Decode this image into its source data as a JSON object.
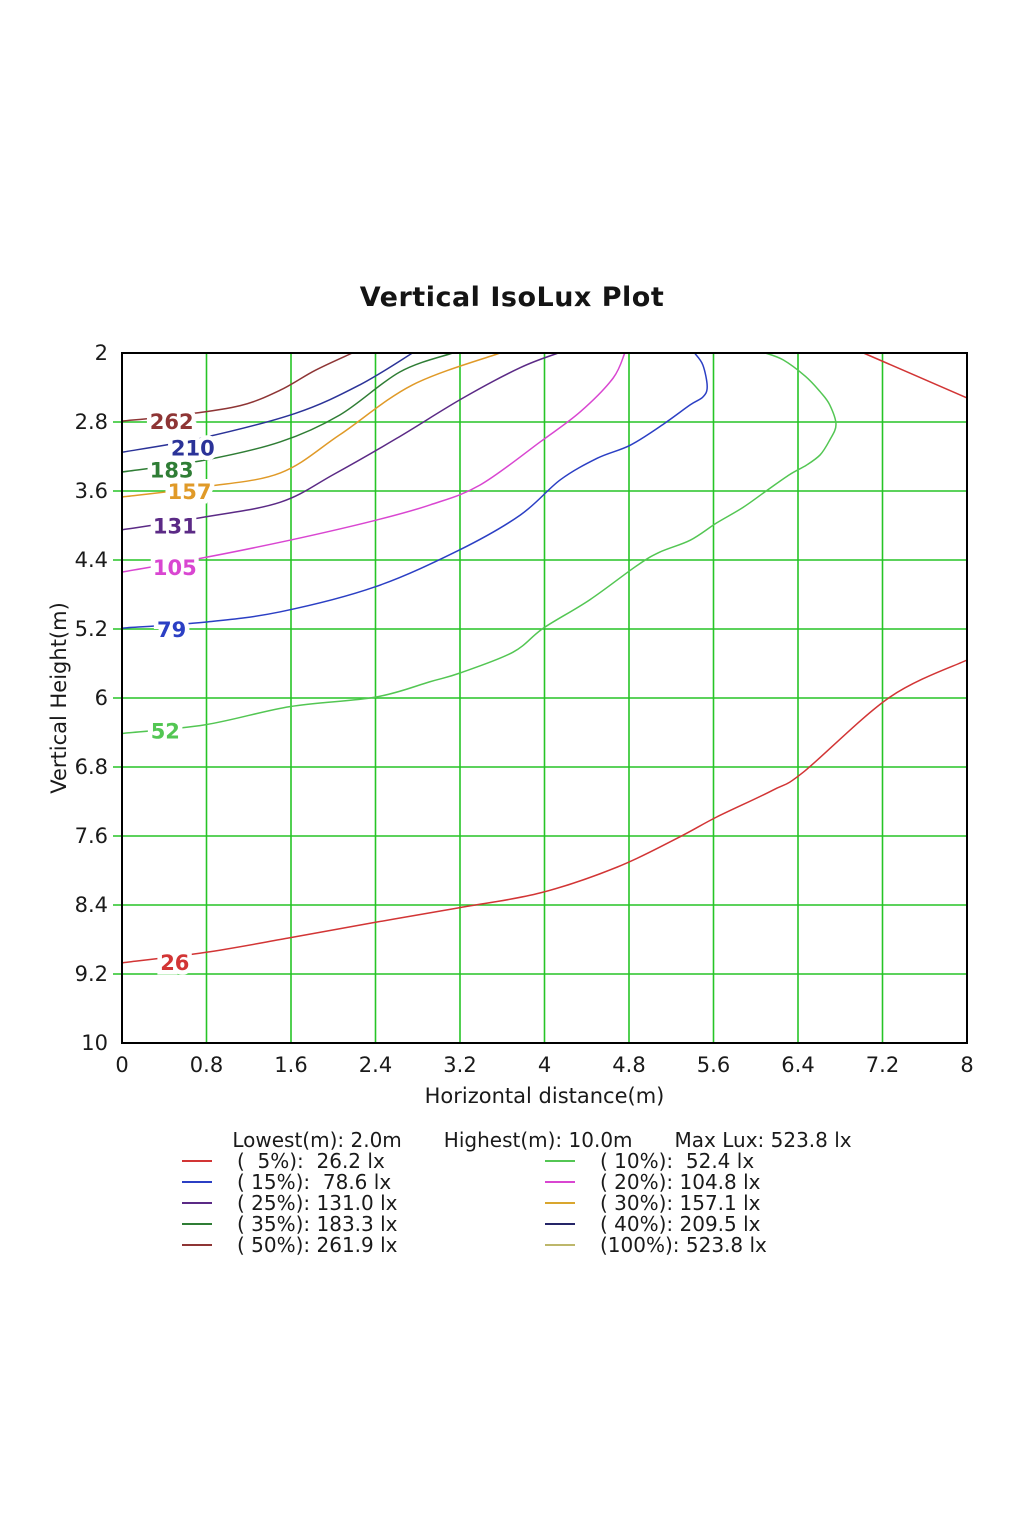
{
  "chart_data": {
    "type": "contour",
    "title": "Vertical IsoLux Plot",
    "xlabel": "Horizontal distance(m)",
    "ylabel": "Vertical Height(m)",
    "x_range": [
      0,
      8
    ],
    "y_range_top_to_bottom": [
      2,
      10
    ],
    "grid": true,
    "grid_color": "#26c426",
    "axis_color": "#000000",
    "xticks": [
      {
        "value": 0,
        "label": "0"
      },
      {
        "value": 0.8,
        "label": "0.8"
      },
      {
        "value": 1.6,
        "label": "1.6"
      },
      {
        "value": 2.4,
        "label": "2.4"
      },
      {
        "value": 3.2,
        "label": "3.2"
      },
      {
        "value": 4,
        "label": "4"
      },
      {
        "value": 4.8,
        "label": "4.8"
      },
      {
        "value": 5.6,
        "label": "5.6"
      },
      {
        "value": 6.4,
        "label": "6.4"
      },
      {
        "value": 7.2,
        "label": "7.2"
      },
      {
        "value": 8,
        "label": "8"
      }
    ],
    "yticks": [
      {
        "value": 2,
        "label": "2"
      },
      {
        "value": 2.8,
        "label": "2.8"
      },
      {
        "value": 3.6,
        "label": "3.6"
      },
      {
        "value": 4.4,
        "label": "4.4"
      },
      {
        "value": 5.2,
        "label": "5.2"
      },
      {
        "value": 6,
        "label": "6"
      },
      {
        "value": 6.8,
        "label": "6.8"
      },
      {
        "value": 7.6,
        "label": "7.6"
      },
      {
        "value": 8.4,
        "label": "8.4"
      },
      {
        "value": 9.2,
        "label": "9.2"
      },
      {
        "value": 10,
        "label": "10"
      }
    ],
    "contours": [
      {
        "name": "50%",
        "lux": 261.9,
        "label": "262",
        "color": "#8e3535",
        "label_pos": [
          0.47,
          2.8
        ],
        "points": [
          [
            0,
            2.79
          ],
          [
            0.55,
            2.72
          ],
          [
            1.12,
            2.61
          ],
          [
            1.5,
            2.43
          ],
          [
            1.83,
            2.2
          ],
          [
            2.18,
            2.0
          ]
        ]
      },
      {
        "name": "40%",
        "lux": 209.5,
        "label": "210",
        "color": "#2b3398",
        "label_pos": [
          0.67,
          3.11
        ],
        "points": [
          [
            0,
            3.15
          ],
          [
            0.74,
            2.99
          ],
          [
            1.64,
            2.7
          ],
          [
            2.25,
            2.37
          ],
          [
            2.75,
            2.0
          ]
        ]
      },
      {
        "name": "35%",
        "lux": 183.3,
        "label": "183",
        "color": "#2f7d35",
        "label_pos": [
          0.47,
          3.36
        ],
        "points": [
          [
            0,
            3.38
          ],
          [
            0.79,
            3.24
          ],
          [
            1.5,
            3.03
          ],
          [
            2.06,
            2.72
          ],
          [
            2.63,
            2.22
          ],
          [
            3.13,
            2.0
          ]
        ]
      },
      {
        "name": "30%",
        "lux": 157.1,
        "label": "157",
        "color": "#e09a28",
        "label_pos": [
          0.64,
          3.61
        ],
        "points": [
          [
            0,
            3.67
          ],
          [
            0.79,
            3.55
          ],
          [
            1.5,
            3.39
          ],
          [
            2.06,
            2.95
          ],
          [
            2.75,
            2.37
          ],
          [
            3.58,
            2.0
          ]
        ]
      },
      {
        "name": "25%",
        "lux": 131.0,
        "label": "131",
        "color": "#5b2a86",
        "label_pos": [
          0.5,
          4.01
        ],
        "points": [
          [
            0,
            4.05
          ],
          [
            0.79,
            3.9
          ],
          [
            1.5,
            3.73
          ],
          [
            2.0,
            3.41
          ],
          [
            2.6,
            2.99
          ],
          [
            3.23,
            2.52
          ],
          [
            3.77,
            2.17
          ],
          [
            4.13,
            2.0
          ]
        ]
      },
      {
        "name": "20%",
        "lux": 104.8,
        "label": "105",
        "color": "#d946d1",
        "label_pos": [
          0.5,
          4.49
        ],
        "points": [
          [
            0,
            4.54
          ],
          [
            0.79,
            4.37
          ],
          [
            1.59,
            4.17
          ],
          [
            2.4,
            3.94
          ],
          [
            2.92,
            3.76
          ],
          [
            3.39,
            3.53
          ],
          [
            3.96,
            3.03
          ],
          [
            4.34,
            2.68
          ],
          [
            4.65,
            2.29
          ],
          [
            4.76,
            2.0
          ]
        ]
      },
      {
        "name": "15%",
        "lux": 78.6,
        "label": "79",
        "color": "#2b3fc4",
        "label_pos": [
          0.47,
          5.21
        ],
        "points": [
          [
            0,
            5.19
          ],
          [
            0.79,
            5.12
          ],
          [
            1.5,
            5.0
          ],
          [
            2.4,
            4.71
          ],
          [
            3.2,
            4.28
          ],
          [
            3.77,
            3.88
          ],
          [
            4.15,
            3.47
          ],
          [
            4.5,
            3.22
          ],
          [
            4.81,
            3.07
          ],
          [
            5.12,
            2.83
          ],
          [
            5.38,
            2.6
          ],
          [
            5.5,
            2.51
          ],
          [
            5.54,
            2.39
          ],
          [
            5.5,
            2.14
          ],
          [
            5.42,
            2.0
          ]
        ]
      },
      {
        "name": "10%",
        "lux": 52.4,
        "label": "52",
        "color": "#53c653",
        "label_pos": [
          0.41,
          6.39
        ],
        "points": [
          [
            0,
            6.41
          ],
          [
            0.79,
            6.31
          ],
          [
            1.59,
            6.1
          ],
          [
            2.4,
            5.99
          ],
          [
            2.92,
            5.81
          ],
          [
            3.2,
            5.71
          ],
          [
            3.7,
            5.47
          ],
          [
            3.99,
            5.19
          ],
          [
            4.43,
            4.86
          ],
          [
            4.88,
            4.46
          ],
          [
            5.09,
            4.31
          ],
          [
            5.38,
            4.17
          ],
          [
            5.63,
            3.97
          ],
          [
            5.88,
            3.79
          ],
          [
            6.11,
            3.59
          ],
          [
            6.32,
            3.41
          ],
          [
            6.48,
            3.3
          ],
          [
            6.61,
            3.18
          ],
          [
            6.7,
            3.01
          ],
          [
            6.76,
            2.83
          ],
          [
            6.7,
            2.6
          ],
          [
            6.61,
            2.45
          ],
          [
            6.47,
            2.27
          ],
          [
            6.26,
            2.08
          ],
          [
            6.09,
            2.0
          ]
        ]
      },
      {
        "name": "5%",
        "lux": 26.2,
        "label": "26",
        "color": "#d23535",
        "label_pos": [
          0.5,
          9.07
        ],
        "points": [
          [
            0,
            9.07
          ],
          [
            0.79,
            8.95
          ],
          [
            1.59,
            8.78
          ],
          [
            2.4,
            8.6
          ],
          [
            3.2,
            8.43
          ],
          [
            3.96,
            8.26
          ],
          [
            4.69,
            7.96
          ],
          [
            5.28,
            7.61
          ],
          [
            5.63,
            7.38
          ],
          [
            6.16,
            7.07
          ],
          [
            6.45,
            6.86
          ],
          [
            7.27,
            5.99
          ],
          [
            8,
            5.56
          ]
        ]
      },
      {
        "name": "5%",
        "lux": 26.2,
        "label": "",
        "color": "#d23535",
        "label_pos": null,
        "points": [
          [
            7.02,
            2.0
          ],
          [
            8,
            2.52
          ]
        ]
      }
    ]
  },
  "legend": {
    "header": [
      "Lowest(m): 2.0m",
      "Highest(m): 10.0m",
      "Max Lux: 523.8 lx"
    ],
    "columns": [
      [
        {
          "text": "(  5%):  26.2 lx",
          "color": "#d23535"
        },
        {
          "text": "( 15%):  78.6 lx",
          "color": "#2b3fc4"
        },
        {
          "text": "( 25%): 131.0 lx",
          "color": "#5b2a86"
        },
        {
          "text": "( 35%): 183.3 lx",
          "color": "#2f7d35"
        },
        {
          "text": "( 50%): 261.9 lx",
          "color": "#8e3535"
        }
      ],
      [
        {
          "text": "( 10%):  52.4 lx",
          "color": "#53c653"
        },
        {
          "text": "( 20%): 104.8 lx",
          "color": "#d946d1"
        },
        {
          "text": "( 30%): 157.1 lx",
          "color": "#d9a62e"
        },
        {
          "text": "( 40%): 209.5 lx",
          "color": "#252567"
        },
        {
          "text": "(100%): 523.8 lx",
          "color": "#bdb76b"
        }
      ]
    ]
  }
}
